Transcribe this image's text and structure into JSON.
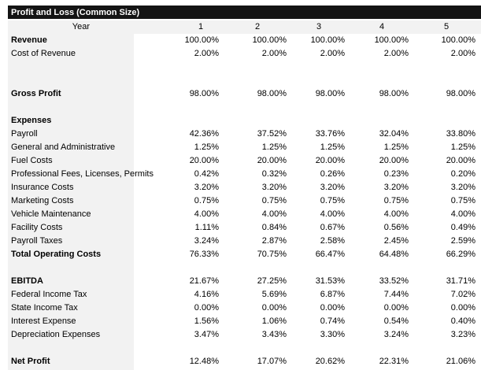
{
  "title": "Profit and Loss (Common Size)",
  "header": {
    "label": "Year",
    "years": [
      "1",
      "2",
      "3",
      "4",
      "5"
    ]
  },
  "rows": [
    {
      "label": "Revenue",
      "bold": true,
      "values": [
        "100.00%",
        "100.00%",
        "100.00%",
        "100.00%",
        "100.00%"
      ]
    },
    {
      "label": "Cost of Revenue",
      "bold": false,
      "values": [
        "2.00%",
        "2.00%",
        "2.00%",
        "2.00%",
        "2.00%"
      ]
    },
    {
      "label": "",
      "bold": false,
      "values": []
    },
    {
      "label": "",
      "bold": false,
      "values": []
    },
    {
      "label": "Gross Profit",
      "bold": true,
      "values": [
        "98.00%",
        "98.00%",
        "98.00%",
        "98.00%",
        "98.00%"
      ]
    },
    {
      "label": "",
      "bold": false,
      "values": []
    },
    {
      "label": "Expenses",
      "bold": true,
      "values": []
    },
    {
      "label": "Payroll",
      "bold": false,
      "values": [
        "42.36%",
        "37.52%",
        "33.76%",
        "32.04%",
        "33.80%"
      ]
    },
    {
      "label": "General and Administrative",
      "bold": false,
      "values": [
        "1.25%",
        "1.25%",
        "1.25%",
        "1.25%",
        "1.25%"
      ]
    },
    {
      "label": "Fuel Costs",
      "bold": false,
      "values": [
        "20.00%",
        "20.00%",
        "20.00%",
        "20.00%",
        "20.00%"
      ]
    },
    {
      "label": "Professional Fees, Licenses, Permits",
      "bold": false,
      "values": [
        "0.42%",
        "0.32%",
        "0.26%",
        "0.23%",
        "0.20%"
      ]
    },
    {
      "label": "Insurance Costs",
      "bold": false,
      "values": [
        "3.20%",
        "3.20%",
        "3.20%",
        "3.20%",
        "3.20%"
      ]
    },
    {
      "label": "Marketing Costs",
      "bold": false,
      "values": [
        "0.75%",
        "0.75%",
        "0.75%",
        "0.75%",
        "0.75%"
      ]
    },
    {
      "label": "Vehicle Maintenance",
      "bold": false,
      "values": [
        "4.00%",
        "4.00%",
        "4.00%",
        "4.00%",
        "4.00%"
      ]
    },
    {
      "label": "Facility Costs",
      "bold": false,
      "values": [
        "1.11%",
        "0.84%",
        "0.67%",
        "0.56%",
        "0.49%"
      ]
    },
    {
      "label": "Payroll Taxes",
      "bold": false,
      "values": [
        "3.24%",
        "2.87%",
        "2.58%",
        "2.45%",
        "2.59%"
      ]
    },
    {
      "label": "Total Operating Costs",
      "bold": true,
      "values": [
        "76.33%",
        "70.75%",
        "66.47%",
        "64.48%",
        "66.29%"
      ]
    },
    {
      "label": "",
      "bold": false,
      "values": []
    },
    {
      "label": "EBITDA",
      "bold": true,
      "values": [
        "21.67%",
        "27.25%",
        "31.53%",
        "33.52%",
        "31.71%"
      ]
    },
    {
      "label": "Federal Income Tax",
      "bold": false,
      "values": [
        "4.16%",
        "5.69%",
        "6.87%",
        "7.44%",
        "7.02%"
      ]
    },
    {
      "label": "State Income Tax",
      "bold": false,
      "values": [
        "0.00%",
        "0.00%",
        "0.00%",
        "0.00%",
        "0.00%"
      ]
    },
    {
      "label": "Interest Expense",
      "bold": false,
      "values": [
        "1.56%",
        "1.06%",
        "0.74%",
        "0.54%",
        "0.40%"
      ]
    },
    {
      "label": "Depreciation Expenses",
      "bold": false,
      "values": [
        "3.47%",
        "3.43%",
        "3.30%",
        "3.24%",
        "3.23%"
      ]
    },
    {
      "label": "",
      "bold": false,
      "values": []
    },
    {
      "label": "Net Profit",
      "bold": true,
      "values": [
        "12.48%",
        "17.07%",
        "20.62%",
        "22.31%",
        "21.06%"
      ]
    }
  ]
}
